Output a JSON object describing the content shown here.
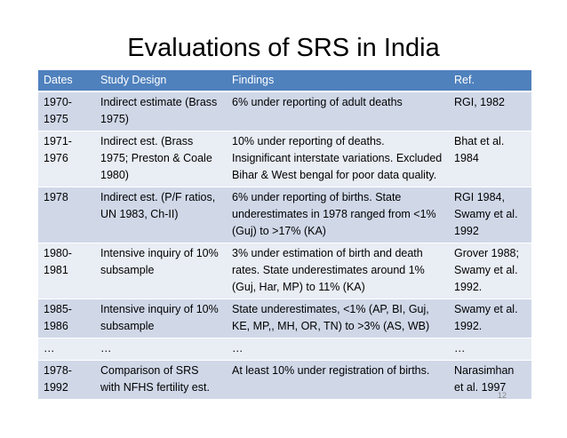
{
  "header": {
    "title": "Evaluations of SRS in India"
  },
  "table": {
    "columns": [
      "Dates",
      "Study Design",
      "Findings",
      "Ref."
    ],
    "rows": [
      [
        "1970-1975",
        "Indirect estimate (Brass 1975)",
        "6% under reporting of adult deaths",
        "RGI, 1982"
      ],
      [
        "1971-1976",
        "Indirect est. (Brass 1975; Preston & Coale 1980)",
        "10% under reporting of deaths. Insignificant interstate variations. Excluded Bihar & West bengal for poor data quality.",
        "Bhat et al. 1984"
      ],
      [
        "1978",
        "Indirect est. (P/F ratios, UN 1983, Ch-II)",
        "6% under reporting of births. State underestimates in 1978 ranged from <1% (Guj) to >17% (KA)",
        "RGI 1984, Swamy et al. 1992"
      ],
      [
        "1980-1981",
        "Intensive inquiry of 10% subsample",
        "3% under estimation of birth and death rates. State underestimates around 1% (Guj, Har, MP) to 11% (KA)",
        "Grover 1988; Swamy et al. 1992."
      ],
      [
        "1985-1986",
        "Intensive inquiry of 10% subsample",
        "State underestimates, <1% (AP, BI, Guj, KE, MP,, MH, OR, TN) to >3% (AS, WB)",
        "Swamy et al. 1992."
      ],
      [
        "…",
        "…",
        "…",
        "…"
      ],
      [
        "1978-1992",
        "Comparison of SRS with NFHS fertility est.",
        "At least 10% under registration of births.",
        "Narasimhan et al. 1997"
      ]
    ]
  },
  "footer": {
    "page_number": "12"
  }
}
